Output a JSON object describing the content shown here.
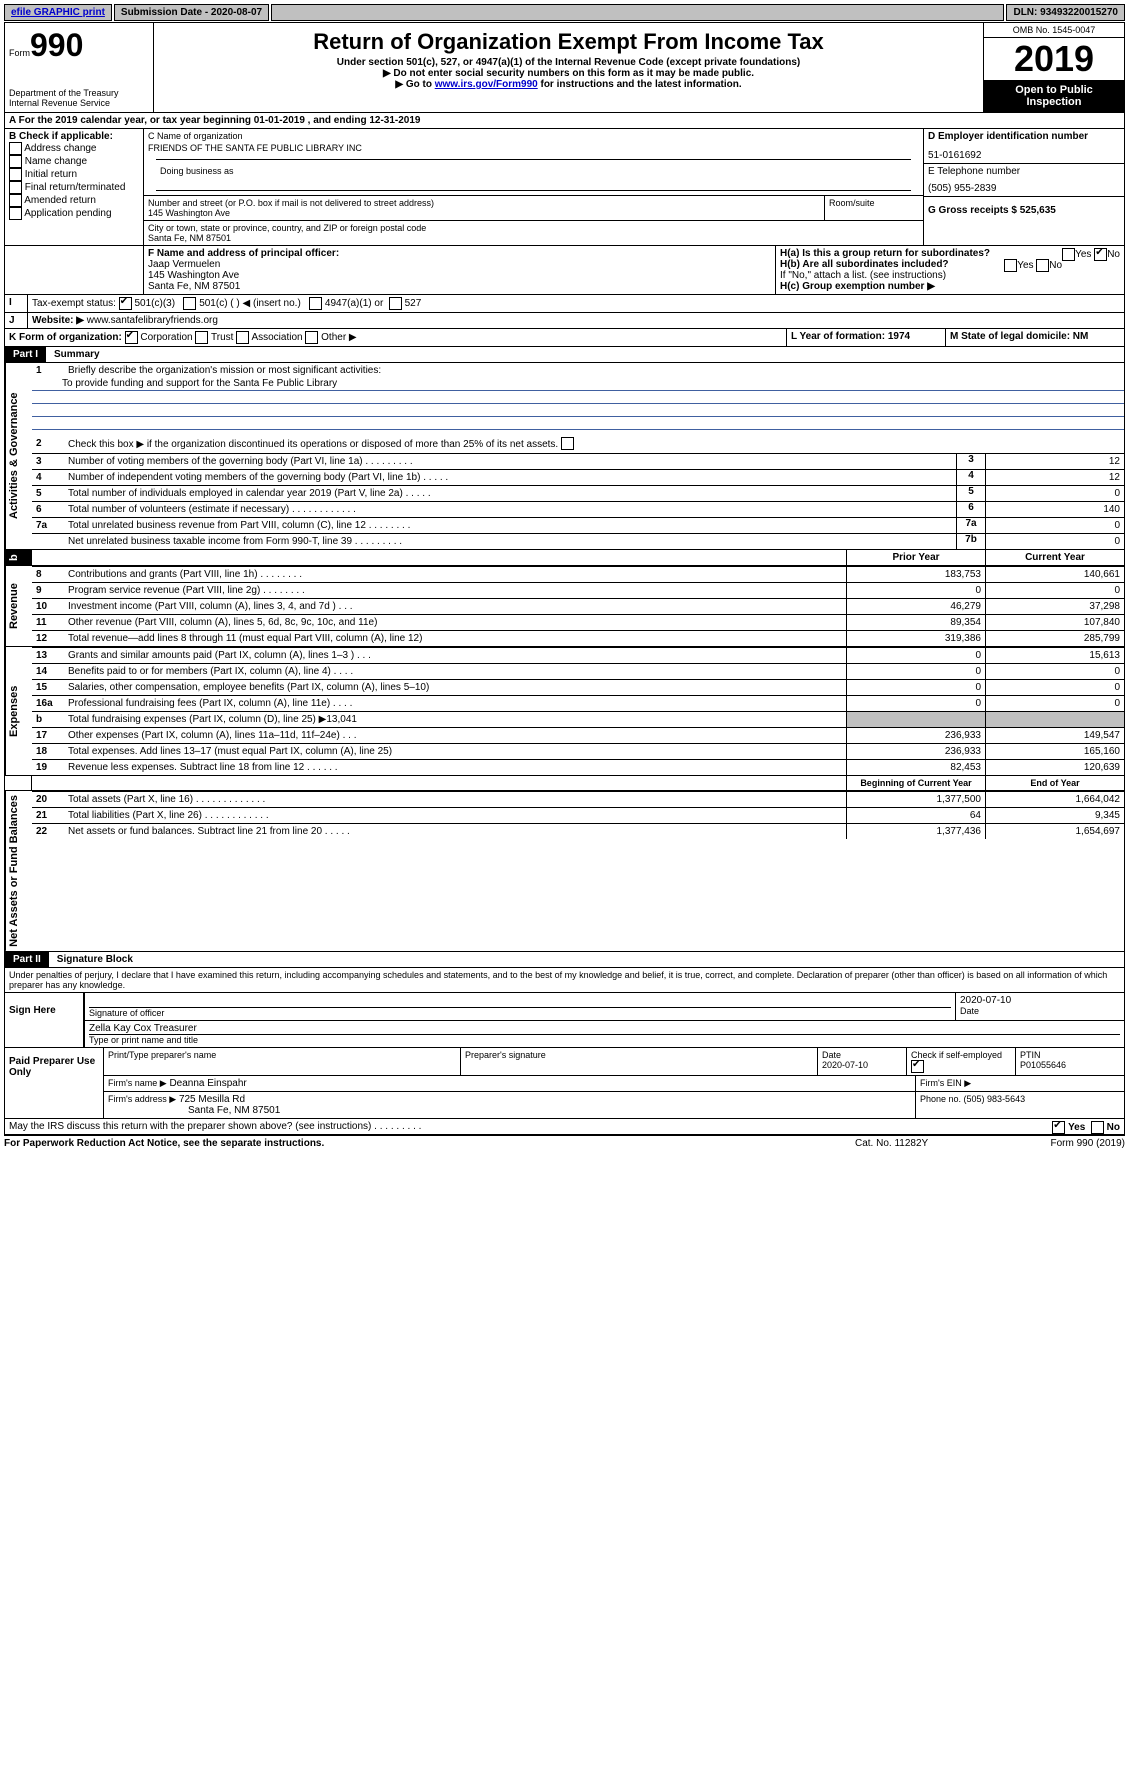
{
  "topbar": {
    "efile": "efile GRAPHIC print",
    "submission_label": "Submission Date - 2020-08-07",
    "dln": "DLN: 93493220015270"
  },
  "header": {
    "form_word": "Form",
    "form_num": "990",
    "dept1": "Department of the Treasury",
    "dept2": "Internal Revenue Service",
    "title": "Return of Organization Exempt From Income Tax",
    "sub1": "Under section 501(c), 527, or 4947(a)(1) of the Internal Revenue Code (except private foundations)",
    "sub2": "▶ Do not enter social security numbers on this form as it may be made public.",
    "sub3_pre": "▶ Go to ",
    "sub3_link": "www.irs.gov/Form990",
    "sub3_post": " for instructions and the latest information.",
    "omb": "OMB No. 1545-0047",
    "year": "2019",
    "open_public": "Open to Public Inspection"
  },
  "lineA": "For the 2019 calendar year, or tax year beginning 01-01-2019    , and ending 12-31-2019",
  "boxB": {
    "title": "B Check if applicable:",
    "opts": [
      "Address change",
      "Name change",
      "Initial return",
      "Final return/terminated",
      "Amended return",
      "Application pending"
    ]
  },
  "boxC": {
    "label": "C Name of organization",
    "name": "FRIENDS OF THE SANTA FE PUBLIC LIBRARY INC",
    "dba_label": "Doing business as",
    "addr_label": "Number and street (or P.O. box if mail is not delivered to street address)",
    "room_label": "Room/suite",
    "addr": "145 Washington Ave",
    "city_label": "City or town, state or province, country, and ZIP or foreign postal code",
    "city": "Santa Fe, NM  87501"
  },
  "boxD": {
    "label": "D Employer identification number",
    "val": "51-0161692"
  },
  "boxE": {
    "label": "E Telephone number",
    "val": "(505) 955-2839"
  },
  "boxG": {
    "label": "G Gross receipts $ 525,635"
  },
  "boxF": {
    "label": "F  Name and address of principal officer:",
    "name": "Jaap Vermuelen",
    "addr": "145 Washington Ave",
    "city": "Santa Fe, NM  87501"
  },
  "boxH": {
    "ha": "H(a)  Is this a group return for subordinates?",
    "hb": "H(b)  Are all subordinates included?",
    "hb_note": "If \"No,\" attach a list. (see instructions)",
    "hc": "H(c)  Group exemption number ▶",
    "yes": "Yes",
    "no": "No"
  },
  "taxexempt": {
    "label": "Tax-exempt status:",
    "c3": "501(c)(3)",
    "c": "501(c) (   ) ◀ (insert no.)",
    "a1": "4947(a)(1) or",
    "s527": "527"
  },
  "boxJ": {
    "label": "Website: ▶",
    "val": "www.santafelibraryfriends.org"
  },
  "boxK": {
    "label": "K Form of organization:",
    "opts": [
      "Corporation",
      "Trust",
      "Association",
      "Other ▶"
    ]
  },
  "boxL": {
    "label": "L Year of formation: 1974"
  },
  "boxM": {
    "label": "M State of legal domicile: NM"
  },
  "part1": {
    "title": "Part I",
    "heading": "Summary",
    "l1": "Briefly describe the organization's mission or most significant activities:",
    "mission": "To provide funding and support for the Santa Fe Public Library",
    "l2": "Check this box ▶       if the organization discontinued its operations or disposed of more than 25% of its net assets.",
    "lines_a": [
      {
        "n": "3",
        "t": "Number of voting members of the governing body (Part VI, line 1a)   .    .    .    .    .    .    .    .    .",
        "b": "3",
        "v": "12"
      },
      {
        "n": "4",
        "t": "Number of independent voting members of the governing body (Part VI, line 1b)    .    .    .    .    .",
        "b": "4",
        "v": "12"
      },
      {
        "n": "5",
        "t": "Total number of individuals employed in calendar year 2019 (Part V, line 2a)    .    .    .    .    .",
        "b": "5",
        "v": "0"
      },
      {
        "n": "6",
        "t": "Total number of volunteers (estimate if necessary)    .    .    .    .    .    .    .    .    .    .    .    .",
        "b": "6",
        "v": "140"
      },
      {
        "n": "7a",
        "t": "Total unrelated business revenue from Part VIII, column (C), line 12    .    .    .    .    .    .    .    .",
        "b": "7a",
        "v": "0"
      },
      {
        "n": "",
        "t": "Net unrelated business taxable income from Form 990-T, line 39    .    .    .    .    .    .    .    .    .",
        "b": "7b",
        "v": "0"
      }
    ],
    "col_prior": "Prior Year",
    "col_curr": "Current Year",
    "revenue": [
      {
        "n": "8",
        "t": "Contributions and grants (Part VIII, line 1h)    .    .    .    .    .    .    .    .",
        "p": "183,753",
        "c": "140,661"
      },
      {
        "n": "9",
        "t": "Program service revenue (Part VIII, line 2g)    .    .    .    .    .    .    .    .",
        "p": "0",
        "c": "0"
      },
      {
        "n": "10",
        "t": "Investment income (Part VIII, column (A), lines 3, 4, and 7d )    .    .    .",
        "p": "46,279",
        "c": "37,298"
      },
      {
        "n": "11",
        "t": "Other revenue (Part VIII, column (A), lines 5, 6d, 8c, 9c, 10c, and 11e)",
        "p": "89,354",
        "c": "107,840"
      },
      {
        "n": "12",
        "t": "Total revenue—add lines 8 through 11 (must equal Part VIII, column (A), line 12)",
        "p": "319,386",
        "c": "285,799"
      }
    ],
    "expenses": [
      {
        "n": "13",
        "t": "Grants and similar amounts paid (Part IX, column (A), lines 1–3 )    .    .    .",
        "p": "0",
        "c": "15,613"
      },
      {
        "n": "14",
        "t": "Benefits paid to or for members (Part IX, column (A), line 4)    .    .    .    .",
        "p": "0",
        "c": "0"
      },
      {
        "n": "15",
        "t": "Salaries, other compensation, employee benefits (Part IX, column (A), lines 5–10)",
        "p": "0",
        "c": "0"
      },
      {
        "n": "16a",
        "t": "Professional fundraising fees (Part IX, column (A), line 11e)    .    .    .    .",
        "p": "0",
        "c": "0"
      },
      {
        "n": "b",
        "t": "Total fundraising expenses (Part IX, column (D), line 25) ▶13,041",
        "p": "",
        "c": "",
        "grey": true
      },
      {
        "n": "17",
        "t": "Other expenses (Part IX, column (A), lines 11a–11d, 11f–24e)    .    .    .",
        "p": "236,933",
        "c": "149,547"
      },
      {
        "n": "18",
        "t": "Total expenses. Add lines 13–17 (must equal Part IX, column (A), line 25)",
        "p": "236,933",
        "c": "165,160"
      },
      {
        "n": "19",
        "t": "Revenue less expenses. Subtract line 18 from line 12    .    .    .    .    .    .",
        "p": "82,453",
        "c": "120,639"
      }
    ],
    "col_begin": "Beginning of Current Year",
    "col_end": "End of Year",
    "netassets": [
      {
        "n": "20",
        "t": "Total assets (Part X, line 16)    .    .    .    .    .    .    .    .    .    .    .    .    .",
        "p": "1,377,500",
        "c": "1,664,042"
      },
      {
        "n": "21",
        "t": "Total liabilities (Part X, line 26)    .    .    .    .    .    .    .    .    .    .    .    .",
        "p": "64",
        "c": "9,345"
      },
      {
        "n": "22",
        "t": "Net assets or fund balances. Subtract line 21 from line 20    .    .    .    .    .",
        "p": "1,377,436",
        "c": "1,654,697"
      }
    ]
  },
  "part2": {
    "title": "Part II",
    "heading": "Signature Block",
    "decl": "Under penalties of perjury, I declare that I have examined this return, including accompanying schedules and statements, and to the best of my knowledge and belief, it is true, correct, and complete. Declaration of preparer (other than officer) is based on all information of which preparer has any knowledge.",
    "sign_here": "Sign Here",
    "sig_officer": "Signature of officer",
    "date1": "2020-07-10",
    "date_label": "Date",
    "officer_name": "Zella Kay Cox  Treasurer",
    "type_label": "Type or print name and title",
    "paid_prep": "Paid Preparer Use Only",
    "prep_name_label": "Print/Type preparer's name",
    "prep_sig_label": "Preparer's signature",
    "prep_date_label": "Date",
    "prep_date": "2020-07-10",
    "check_self": "Check       if self-employed",
    "ptin_label": "PTIN",
    "ptin": "P01055646",
    "firm_name_label": "Firm's name    ▶",
    "firm_name": "Deanna Einspahr",
    "firm_ein_label": "Firm's EIN ▶",
    "firm_addr_label": "Firm's address ▶",
    "firm_addr": "725 Mesilla Rd",
    "firm_city": "Santa Fe, NM  87501",
    "firm_phone_label": "Phone no. (505) 983-5643",
    "may_discuss": "May the IRS discuss this return with the preparer shown above? (see instructions)    .    .    .    .    .    .    .    .    .",
    "paperwork": "For Paperwork Reduction Act Notice, see the separate instructions.",
    "cat": "Cat. No. 11282Y",
    "formno": "Form 990 (2019)"
  },
  "sect_labels": {
    "gov": "Activities & Governance",
    "rev": "Revenue",
    "exp": "Expenses",
    "net": "Net Assets or Fund Balances"
  }
}
